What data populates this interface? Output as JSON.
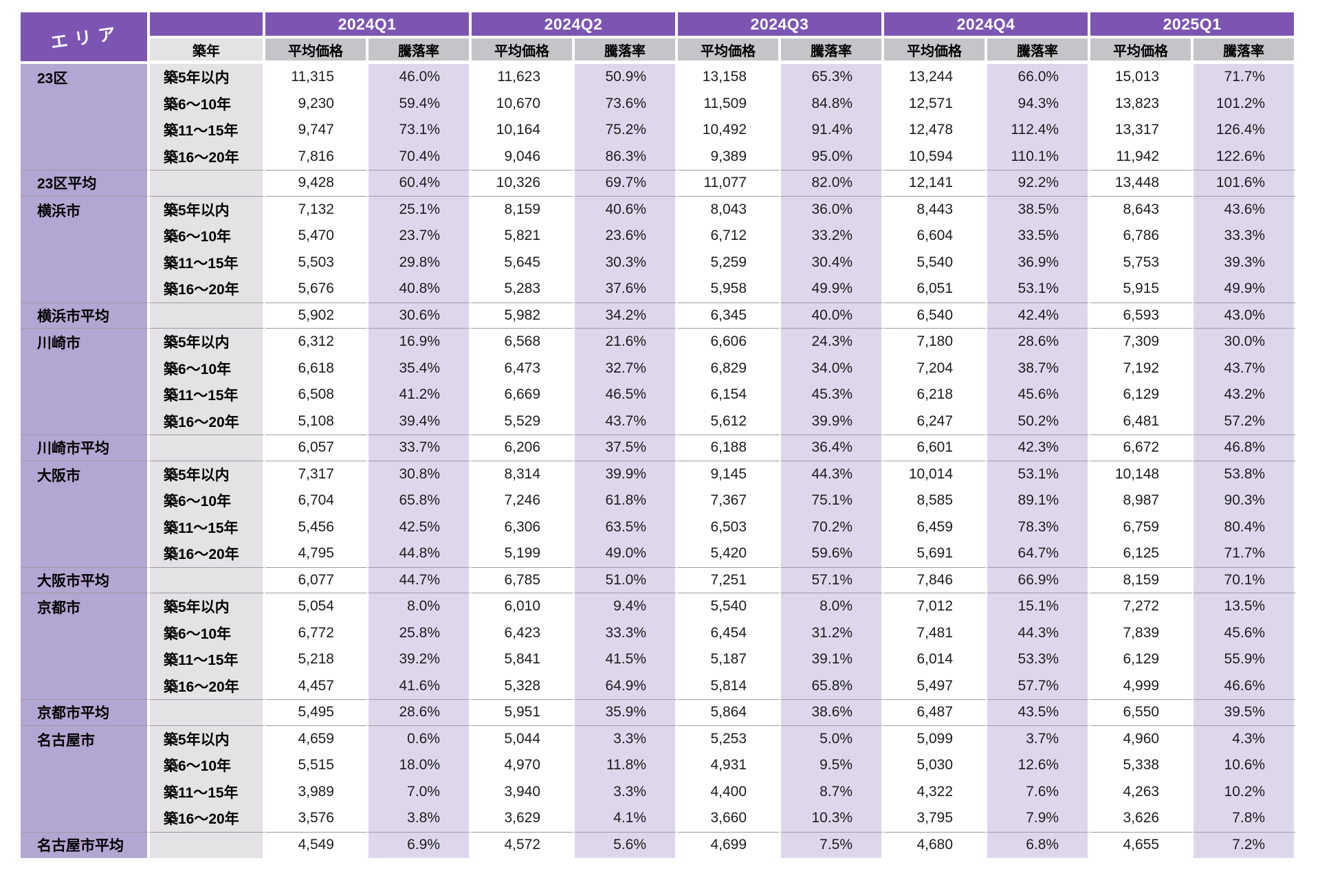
{
  "colors": {
    "header_purple": "#7C55B2",
    "area_column_fill": "#B3A6D2",
    "rate_column_fill": "#DED7EC",
    "age_column_fill": "#E4E2E4",
    "subheader_fill": "#C6C3C9",
    "divider_line": "#9C99A2",
    "text": "#1C1C1C"
  },
  "header": {
    "area_label": "エリア",
    "age_label": "築年",
    "price_label": "平均価格",
    "rate_label": "騰落率",
    "quarters": [
      "2024Q1",
      "2024Q2",
      "2024Q3",
      "2024Q4",
      "2025Q1"
    ]
  },
  "chart_data": {
    "type": "table",
    "quarters": [
      "2024Q1",
      "2024Q2",
      "2024Q3",
      "2024Q4",
      "2025Q1"
    ],
    "metrics_per_quarter": [
      "平均価格",
      "騰落率"
    ],
    "age_bands": [
      "築5年以内",
      "築6〜10年",
      "築11〜15年",
      "築16〜20年"
    ],
    "groups": [
      {
        "area": "23区",
        "avg_label": "23区平均",
        "rows": [
          {
            "age": "築5年以内",
            "cells": [
              "11,315",
              "46.0%",
              "11,623",
              "50.9%",
              "13,158",
              "65.3%",
              "13,244",
              "66.0%",
              "15,013",
              "71.7%"
            ]
          },
          {
            "age": "築6〜10年",
            "cells": [
              "9,230",
              "59.4%",
              "10,670",
              "73.6%",
              "11,509",
              "84.8%",
              "12,571",
              "94.3%",
              "13,823",
              "101.2%"
            ]
          },
          {
            "age": "築11〜15年",
            "cells": [
              "9,747",
              "73.1%",
              "10,164",
              "75.2%",
              "10,492",
              "91.4%",
              "12,478",
              "112.4%",
              "13,317",
              "126.4%"
            ]
          },
          {
            "age": "築16〜20年",
            "cells": [
              "7,816",
              "70.4%",
              "9,046",
              "86.3%",
              "9,389",
              "95.0%",
              "10,594",
              "110.1%",
              "11,942",
              "122.6%"
            ]
          }
        ],
        "avg_cells": [
          "9,428",
          "60.4%",
          "10,326",
          "69.7%",
          "11,077",
          "82.0%",
          "12,141",
          "92.2%",
          "13,448",
          "101.6%"
        ]
      },
      {
        "area": "横浜市",
        "avg_label": "横浜市平均",
        "rows": [
          {
            "age": "築5年以内",
            "cells": [
              "7,132",
              "25.1%",
              "8,159",
              "40.6%",
              "8,043",
              "36.0%",
              "8,443",
              "38.5%",
              "8,643",
              "43.6%"
            ]
          },
          {
            "age": "築6〜10年",
            "cells": [
              "5,470",
              "23.7%",
              "5,821",
              "23.6%",
              "6,712",
              "33.2%",
              "6,604",
              "33.5%",
              "6,786",
              "33.3%"
            ]
          },
          {
            "age": "築11〜15年",
            "cells": [
              "5,503",
              "29.8%",
              "5,645",
              "30.3%",
              "5,259",
              "30.4%",
              "5,540",
              "36.9%",
              "5,753",
              "39.3%"
            ]
          },
          {
            "age": "築16〜20年",
            "cells": [
              "5,676",
              "40.8%",
              "5,283",
              "37.6%",
              "5,958",
              "49.9%",
              "6,051",
              "53.1%",
              "5,915",
              "49.9%"
            ]
          }
        ],
        "avg_cells": [
          "5,902",
          "30.6%",
          "5,982",
          "34.2%",
          "6,345",
          "40.0%",
          "6,540",
          "42.4%",
          "6,593",
          "43.0%"
        ]
      },
      {
        "area": "川崎市",
        "avg_label": "川崎市平均",
        "rows": [
          {
            "age": "築5年以内",
            "cells": [
              "6,312",
              "16.9%",
              "6,568",
              "21.6%",
              "6,606",
              "24.3%",
              "7,180",
              "28.6%",
              "7,309",
              "30.0%"
            ]
          },
          {
            "age": "築6〜10年",
            "cells": [
              "6,618",
              "35.4%",
              "6,473",
              "32.7%",
              "6,829",
              "34.0%",
              "7,204",
              "38.7%",
              "7,192",
              "43.7%"
            ]
          },
          {
            "age": "築11〜15年",
            "cells": [
              "6,508",
              "41.2%",
              "6,669",
              "46.5%",
              "6,154",
              "45.3%",
              "6,218",
              "45.6%",
              "6,129",
              "43.2%"
            ]
          },
          {
            "age": "築16〜20年",
            "cells": [
              "5,108",
              "39.4%",
              "5,529",
              "43.7%",
              "5,612",
              "39.9%",
              "6,247",
              "50.2%",
              "6,481",
              "57.2%"
            ]
          }
        ],
        "avg_cells": [
          "6,057",
          "33.7%",
          "6,206",
          "37.5%",
          "6,188",
          "36.4%",
          "6,601",
          "42.3%",
          "6,672",
          "46.8%"
        ]
      },
      {
        "area": "大阪市",
        "avg_label": "大阪市平均",
        "rows": [
          {
            "age": "築5年以内",
            "cells": [
              "7,317",
              "30.8%",
              "8,314",
              "39.9%",
              "9,145",
              "44.3%",
              "10,014",
              "53.1%",
              "10,148",
              "53.8%"
            ]
          },
          {
            "age": "築6〜10年",
            "cells": [
              "6,704",
              "65.8%",
              "7,246",
              "61.8%",
              "7,367",
              "75.1%",
              "8,585",
              "89.1%",
              "8,987",
              "90.3%"
            ]
          },
          {
            "age": "築11〜15年",
            "cells": [
              "5,456",
              "42.5%",
              "6,306",
              "63.5%",
              "6,503",
              "70.2%",
              "6,459",
              "78.3%",
              "6,759",
              "80.4%"
            ]
          },
          {
            "age": "築16〜20年",
            "cells": [
              "4,795",
              "44.8%",
              "5,199",
              "49.0%",
              "5,420",
              "59.6%",
              "5,691",
              "64.7%",
              "6,125",
              "71.7%"
            ]
          }
        ],
        "avg_cells": [
          "6,077",
          "44.7%",
          "6,785",
          "51.0%",
          "7,251",
          "57.1%",
          "7,846",
          "66.9%",
          "8,159",
          "70.1%"
        ]
      },
      {
        "area": "京都市",
        "avg_label": "京都市平均",
        "rows": [
          {
            "age": "築5年以内",
            "cells": [
              "5,054",
              "8.0%",
              "6,010",
              "9.4%",
              "5,540",
              "8.0%",
              "7,012",
              "15.1%",
              "7,272",
              "13.5%"
            ]
          },
          {
            "age": "築6〜10年",
            "cells": [
              "6,772",
              "25.8%",
              "6,423",
              "33.3%",
              "6,454",
              "31.2%",
              "7,481",
              "44.3%",
              "7,839",
              "45.6%"
            ]
          },
          {
            "age": "築11〜15年",
            "cells": [
              "5,218",
              "39.2%",
              "5,841",
              "41.5%",
              "5,187",
              "39.1%",
              "6,014",
              "53.3%",
              "6,129",
              "55.9%"
            ]
          },
          {
            "age": "築16〜20年",
            "cells": [
              "4,457",
              "41.6%",
              "5,328",
              "64.9%",
              "5,814",
              "65.8%",
              "5,497",
              "57.7%",
              "4,999",
              "46.6%"
            ]
          }
        ],
        "avg_cells": [
          "5,495",
          "28.6%",
          "5,951",
          "35.9%",
          "5,864",
          "38.6%",
          "6,487",
          "43.5%",
          "6,550",
          "39.5%"
        ]
      },
      {
        "area": "名古屋市",
        "avg_label": "名古屋市平均",
        "rows": [
          {
            "age": "築5年以内",
            "cells": [
              "4,659",
              "0.6%",
              "5,044",
              "3.3%",
              "5,253",
              "5.0%",
              "5,099",
              "3.7%",
              "4,960",
              "4.3%"
            ]
          },
          {
            "age": "築6〜10年",
            "cells": [
              "5,515",
              "18.0%",
              "4,970",
              "11.8%",
              "4,931",
              "9.5%",
              "5,030",
              "12.6%",
              "5,338",
              "10.6%"
            ]
          },
          {
            "age": "築11〜15年",
            "cells": [
              "3,989",
              "7.0%",
              "3,940",
              "3.3%",
              "4,400",
              "8.7%",
              "4,322",
              "7.6%",
              "4,263",
              "10.2%"
            ]
          },
          {
            "age": "築16〜20年",
            "cells": [
              "3,576",
              "3.8%",
              "3,629",
              "4.1%",
              "3,660",
              "10.3%",
              "3,795",
              "7.9%",
              "3,626",
              "7.8%"
            ]
          }
        ],
        "avg_cells": [
          "4,549",
          "6.9%",
          "4,572",
          "5.6%",
          "4,699",
          "7.5%",
          "4,680",
          "6.8%",
          "4,655",
          "7.2%"
        ]
      }
    ]
  }
}
